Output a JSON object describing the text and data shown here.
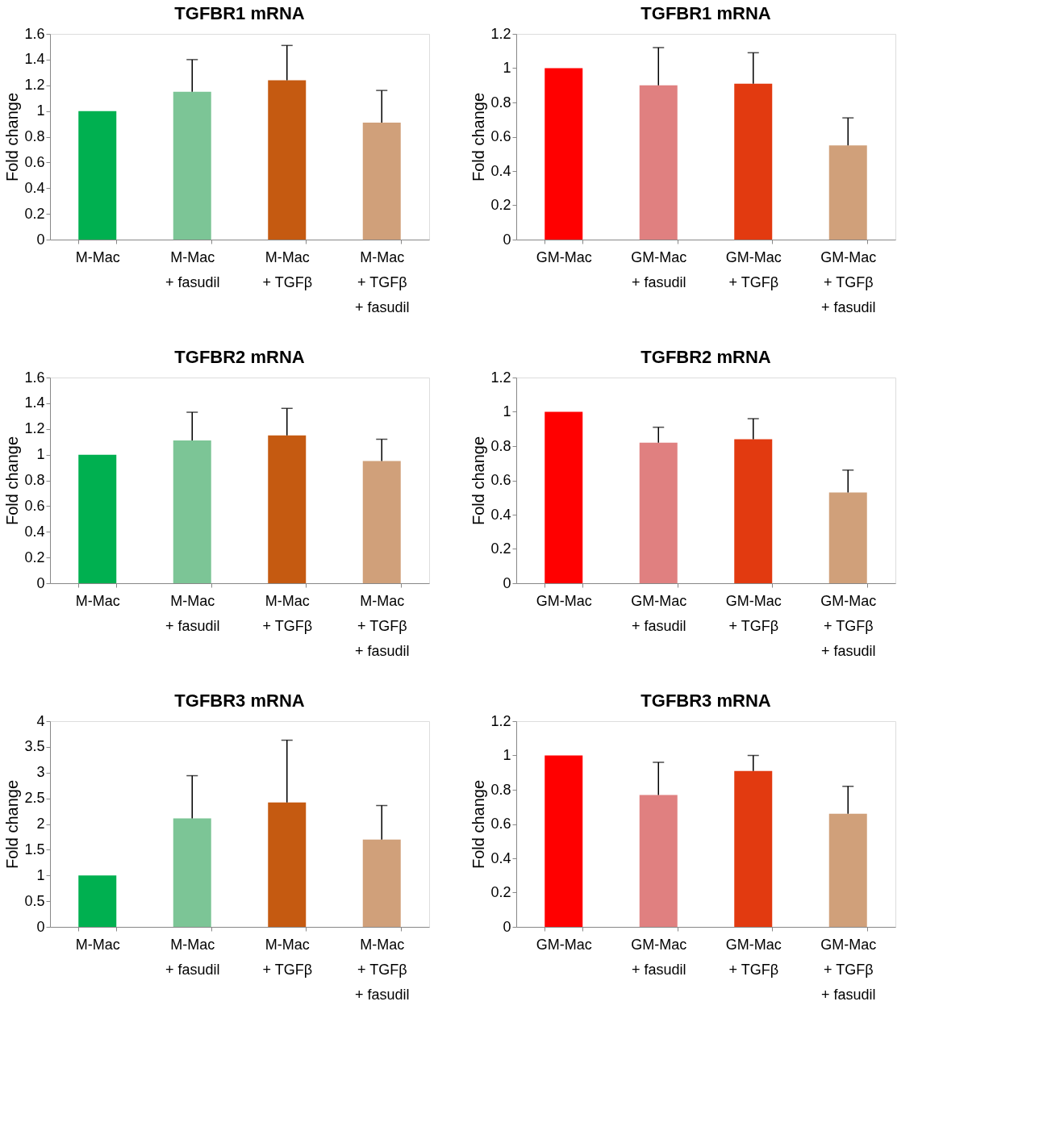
{
  "chart_data": [
    {
      "type": "bar",
      "title": "TGFBR1 mRNA",
      "ylabel": "Fold change",
      "categories": [
        "M-Mac",
        "M-Mac\n+ fasudil",
        "M-Mac\n+ TGFβ",
        "M-Mac\n+ TGFβ\n+ fasudil"
      ],
      "values": [
        1,
        1.15,
        1.24,
        0.91
      ],
      "errors": [
        null,
        [
          1.15,
          1.4
        ],
        [
          1.24,
          1.51
        ],
        [
          0.91,
          1.16
        ]
      ],
      "colors": [
        "#00b050",
        "#7cc596",
        "#c55a11",
        "#d0a07a"
      ],
      "ylim": [
        0,
        1.6
      ],
      "yticks": [
        0,
        0.2,
        0.4,
        0.6,
        0.8,
        1,
        1.2,
        1.4,
        1.6
      ],
      "grid": false
    },
    {
      "type": "bar",
      "title": "TGFBR1 mRNA",
      "ylabel": "Fold change",
      "categories": [
        "GM-Mac",
        "GM-Mac\n+ fasudil",
        "GM-Mac\n+ TGFβ",
        "GM-Mac\n+ TGFβ\n+ fasudil"
      ],
      "values": [
        1,
        0.9,
        0.91,
        0.55
      ],
      "errors": [
        null,
        [
          0.9,
          1.12
        ],
        [
          0.91,
          1.09
        ],
        [
          0.55,
          0.71
        ]
      ],
      "colors": [
        "#ff0000",
        "#e08080",
        "#e23a10",
        "#d0a07a"
      ],
      "ylim": [
        0,
        1.2
      ],
      "yticks": [
        0,
        0.2,
        0.4,
        0.6,
        0.8,
        1,
        1.2
      ],
      "grid": false
    },
    {
      "type": "bar",
      "title": "TGFBR2 mRNA",
      "ylabel": "Fold change",
      "categories": [
        "M-Mac",
        "M-Mac\n+ fasudil",
        "M-Mac\n+ TGFβ",
        "M-Mac\n+ TGFβ\n+ fasudil"
      ],
      "values": [
        1,
        1.11,
        1.15,
        0.95
      ],
      "errors": [
        null,
        [
          1.11,
          1.33
        ],
        [
          1.15,
          1.36
        ],
        [
          0.95,
          1.12
        ]
      ],
      "colors": [
        "#00b050",
        "#7cc596",
        "#c55a11",
        "#d0a07a"
      ],
      "ylim": [
        0,
        1.6
      ],
      "yticks": [
        0,
        0.2,
        0.4,
        0.6,
        0.8,
        1,
        1.2,
        1.4,
        1.6
      ],
      "grid": false
    },
    {
      "type": "bar",
      "title": "TGFBR2 mRNA",
      "ylabel": "Fold change",
      "categories": [
        "GM-Mac",
        "GM-Mac\n+ fasudil",
        "GM-Mac\n+ TGFβ",
        "GM-Mac\n+ TGFβ\n+ fasudil"
      ],
      "values": [
        1,
        0.82,
        0.84,
        0.53
      ],
      "errors": [
        null,
        [
          0.82,
          0.91
        ],
        [
          0.84,
          0.96
        ],
        [
          0.53,
          0.66
        ]
      ],
      "colors": [
        "#ff0000",
        "#e08080",
        "#e23a10",
        "#d0a07a"
      ],
      "ylim": [
        0,
        1.2
      ],
      "yticks": [
        0,
        0.2,
        0.4,
        0.6,
        0.8,
        1,
        1.2
      ],
      "grid": false
    },
    {
      "type": "bar",
      "title": "TGFBR3 mRNA",
      "ylabel": "Fold change",
      "categories": [
        "M-Mac",
        "M-Mac\n+ fasudil",
        "M-Mac\n+ TGFβ",
        "M-Mac\n+ TGFβ\n+ fasudil"
      ],
      "values": [
        1,
        2.11,
        2.42,
        1.7
      ],
      "errors": [
        null,
        [
          2.11,
          2.94
        ],
        [
          2.42,
          3.63
        ],
        [
          1.7,
          2.36
        ]
      ],
      "colors": [
        "#00b050",
        "#7cc596",
        "#c55a11",
        "#d0a07a"
      ],
      "ylim": [
        0,
        4
      ],
      "yticks": [
        0,
        0.5,
        1,
        1.5,
        2,
        2.5,
        3,
        3.5,
        4
      ],
      "grid": false
    },
    {
      "type": "bar",
      "title": "TGFBR3 mRNA",
      "ylabel": "Fold change",
      "categories": [
        "GM-Mac",
        "GM-Mac\n+ fasudil",
        "GM-Mac\n+ TGFβ",
        "GM-Mac\n+ TGFβ\n+ fasudil"
      ],
      "values": [
        1,
        0.77,
        0.91,
        0.66
      ],
      "errors": [
        null,
        [
          0.77,
          0.96
        ],
        [
          0.91,
          1.0
        ],
        [
          0.66,
          0.82
        ]
      ],
      "colors": [
        "#ff0000",
        "#e08080",
        "#e23a10",
        "#d0a07a"
      ],
      "ylim": [
        0,
        1.2
      ],
      "yticks": [
        0,
        0.2,
        0.4,
        0.6,
        0.8,
        1,
        1.2
      ],
      "grid": false
    }
  ]
}
